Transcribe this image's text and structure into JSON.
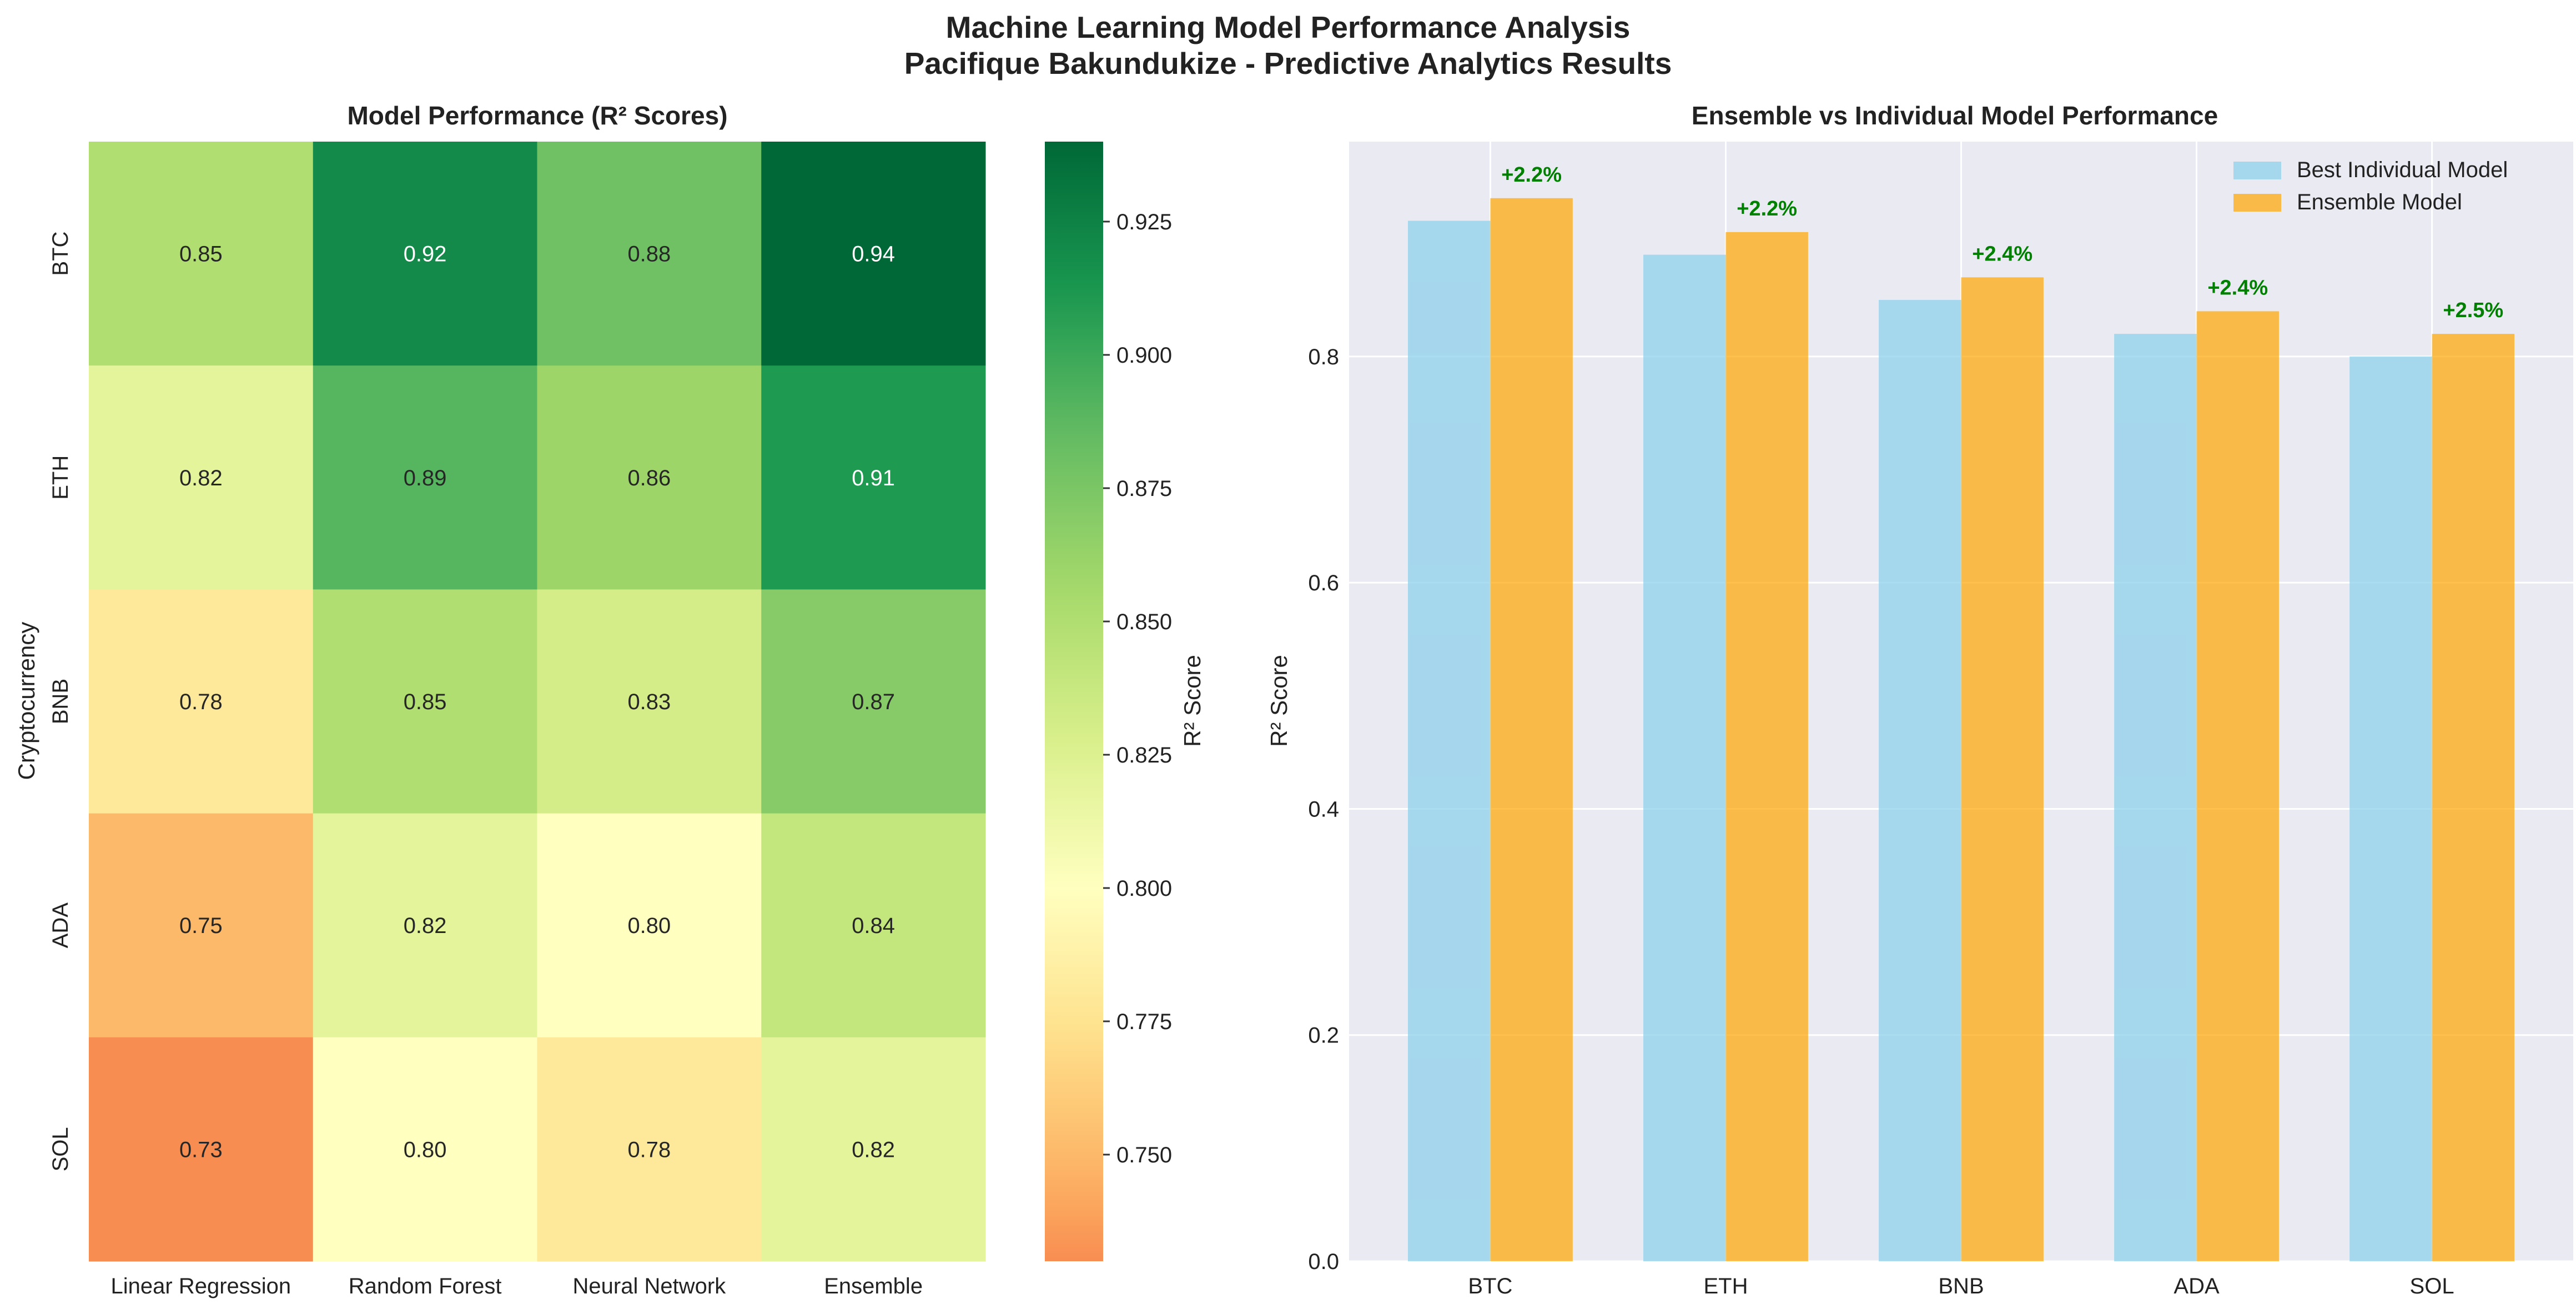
{
  "figure": {
    "title_line1": "Machine Learning Model Performance Analysis",
    "title_line2": "Pacifique Bakundukize - Predictive Analytics Results"
  },
  "chart_data": [
    {
      "type": "heatmap",
      "title": "Model Performance (R² Scores)",
      "xlabel": "",
      "ylabel": "Cryptocurrency",
      "x_categories": [
        "Linear Regression",
        "Random Forest",
        "Neural Network",
        "Ensemble"
      ],
      "y_categories": [
        "BTC",
        "ETH",
        "BNB",
        "ADA",
        "SOL"
      ],
      "values": [
        [
          0.85,
          0.92,
          0.88,
          0.94
        ],
        [
          0.82,
          0.89,
          0.86,
          0.91
        ],
        [
          0.78,
          0.85,
          0.83,
          0.87
        ],
        [
          0.75,
          0.82,
          0.8,
          0.84
        ],
        [
          0.73,
          0.8,
          0.78,
          0.82
        ]
      ],
      "value_labels": [
        [
          "0.85",
          "0.92",
          "0.88",
          "0.94"
        ],
        [
          "0.82",
          "0.89",
          "0.86",
          "0.91"
        ],
        [
          "0.78",
          "0.85",
          "0.83",
          "0.87"
        ],
        [
          "0.75",
          "0.82",
          "0.80",
          "0.84"
        ],
        [
          "0.73",
          "0.80",
          "0.78",
          "0.82"
        ]
      ],
      "colormap": "RdYlGn (centered)",
      "colorbar": {
        "label": "R² Score",
        "vmin": 0.73,
        "vmax": 0.94,
        "center": 0.8,
        "ticks": [
          0.75,
          0.775,
          0.8,
          0.825,
          0.85,
          0.875,
          0.9,
          0.925
        ],
        "tick_labels": [
          "0.750",
          "0.775",
          "0.800",
          "0.825",
          "0.850",
          "0.875",
          "0.900",
          "0.925"
        ]
      }
    },
    {
      "type": "bar",
      "title": "Ensemble vs Individual Model Performance",
      "xlabel": "",
      "ylabel": "R² Score",
      "categories": [
        "BTC",
        "ETH",
        "BNB",
        "ADA",
        "SOL"
      ],
      "series": [
        {
          "name": "Best Individual Model",
          "values": [
            0.92,
            0.89,
            0.85,
            0.82,
            0.8
          ],
          "color": "#87CEEB"
        },
        {
          "name": "Ensemble Model",
          "values": [
            0.94,
            0.91,
            0.87,
            0.84,
            0.82
          ],
          "color": "#FFA500"
        }
      ],
      "annotations": [
        "+2.2%",
        "+2.2%",
        "+2.4%",
        "+2.4%",
        "+2.5%"
      ],
      "annotation_color": "#008000",
      "ylim": [
        0,
        0.99
      ],
      "yticks": [
        0.0,
        0.2,
        0.4,
        0.6,
        0.8
      ],
      "ytick_labels": [
        "0.0",
        "0.2",
        "0.4",
        "0.6",
        "0.8"
      ],
      "grid": true,
      "legend_position": "top-right",
      "background": "#EAEAF2"
    }
  ]
}
